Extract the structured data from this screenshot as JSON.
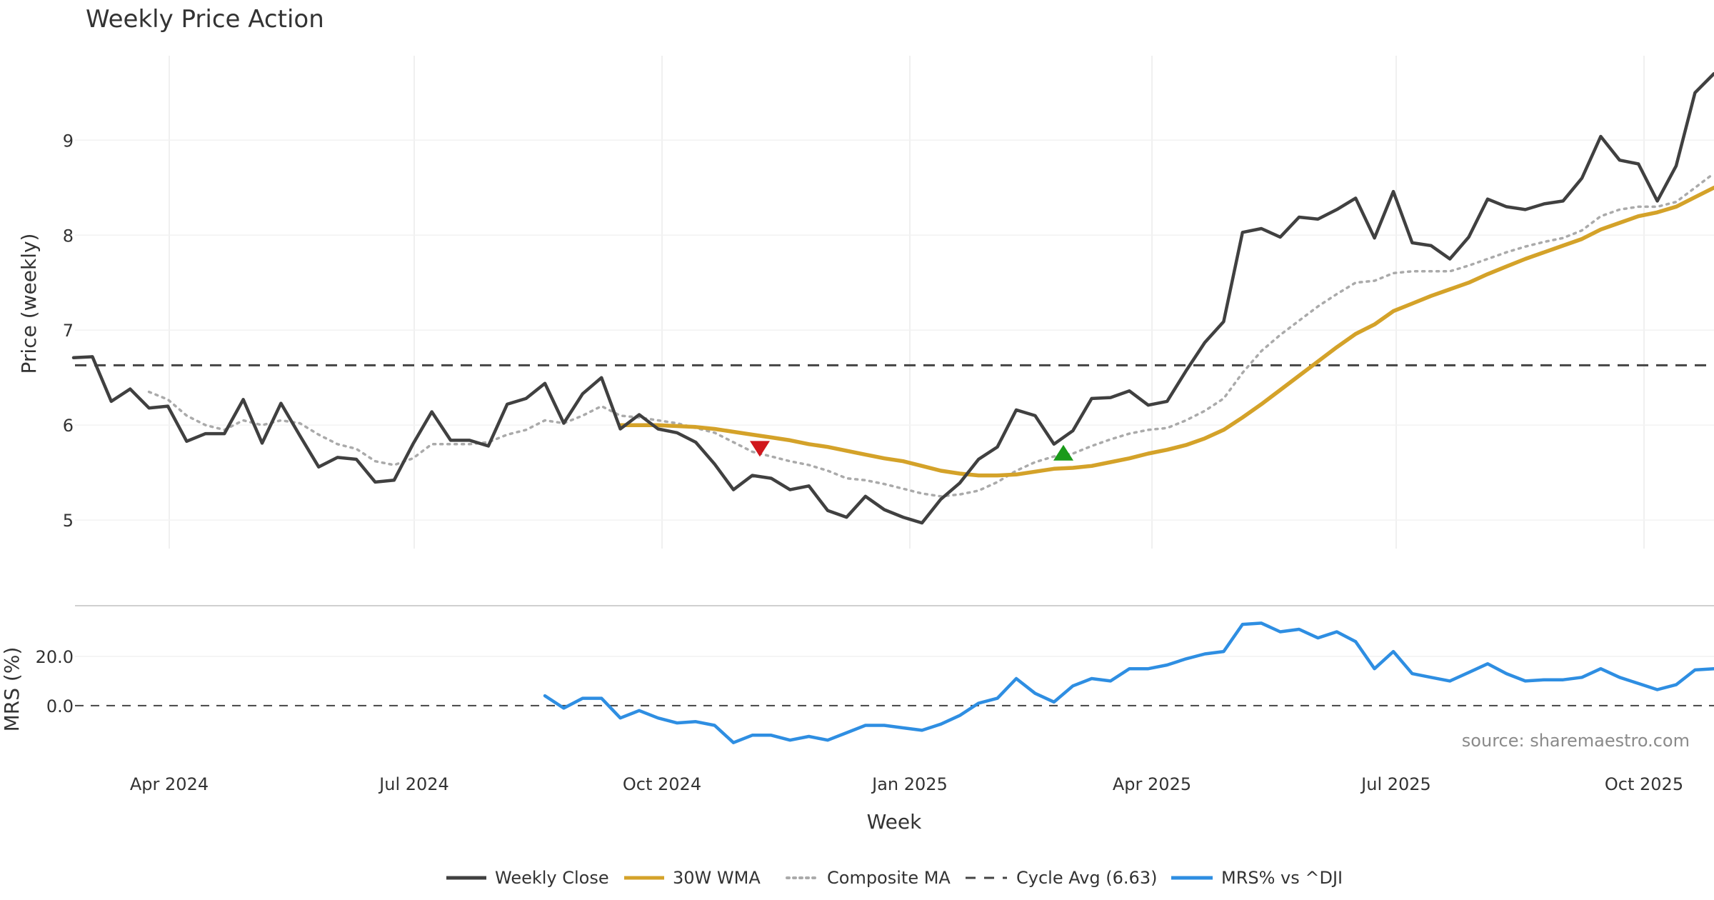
{
  "chart_data": {
    "type": "line",
    "title": "Weekly Price Action",
    "source": "source: sharemaestro.com",
    "xlabel": "Week",
    "x_ticks": [
      "Apr 2024",
      "Jul 2024",
      "Oct 2024",
      "Jan 2025",
      "Apr 2025",
      "Jul 2025",
      "Oct 2025"
    ],
    "price_panel": {
      "ylabel": "Price (weekly)",
      "ylim": [
        4.7,
        9.95
      ],
      "y_ticks": [
        "5",
        "6",
        "7",
        "8",
        "9"
      ],
      "cycle_avg": 6.63,
      "series": [
        {
          "name": "Weekly Close",
          "color": "#404040",
          "values": [
            6.71,
            6.72,
            6.25,
            6.38,
            6.18,
            6.2,
            5.83,
            5.91,
            5.91,
            6.27,
            5.81,
            6.23,
            5.89,
            5.56,
            5.66,
            5.64,
            5.4,
            5.42,
            5.8,
            6.14,
            5.84,
            5.84,
            5.78,
            6.22,
            6.28,
            6.44,
            6.02,
            6.33,
            6.5,
            5.96,
            6.11,
            5.96,
            5.92,
            5.82,
            5.59,
            5.32,
            5.47,
            5.44,
            5.32,
            5.36,
            5.1,
            5.03,
            5.25,
            5.11,
            5.03,
            4.97,
            5.22,
            5.39,
            5.64,
            5.77,
            6.16,
            6.1,
            5.8,
            5.94,
            6.28,
            6.29,
            6.36,
            6.21,
            6.25,
            6.57,
            6.87,
            7.09,
            8.03,
            8.07,
            7.98,
            8.19,
            8.17,
            8.27,
            8.39,
            7.97,
            8.46,
            7.92,
            7.89,
            7.75,
            7.98,
            8.38,
            8.3,
            8.27,
            8.33,
            8.36,
            8.6,
            9.04,
            8.79,
            8.75,
            8.36,
            8.73,
            9.5,
            9.7
          ]
        },
        {
          "name": "30W WMA",
          "color": "#d4a229",
          "values": [
            null,
            null,
            null,
            null,
            null,
            null,
            null,
            null,
            null,
            null,
            null,
            null,
            null,
            null,
            null,
            null,
            null,
            null,
            null,
            null,
            null,
            null,
            null,
            null,
            null,
            null,
            null,
            null,
            null,
            6.0,
            6.0,
            6.0,
            5.99,
            5.98,
            5.96,
            5.93,
            5.9,
            5.87,
            5.84,
            5.8,
            5.77,
            5.73,
            5.69,
            5.65,
            5.62,
            5.57,
            5.52,
            5.49,
            5.47,
            5.47,
            5.48,
            5.51,
            5.54,
            5.55,
            5.57,
            5.61,
            5.65,
            5.7,
            5.74,
            5.79,
            5.86,
            5.95,
            6.08,
            6.22,
            6.37,
            6.52,
            6.67,
            6.82,
            6.96,
            7.06,
            7.2,
            7.28,
            7.36,
            7.43,
            7.5,
            7.59,
            7.67,
            7.75,
            7.82,
            7.89,
            7.96,
            8.06,
            8.13,
            8.2,
            8.24,
            8.3,
            8.4,
            8.5
          ]
        },
        {
          "name": "Composite MA",
          "color": "#aaaaaa",
          "dashed": true,
          "values": [
            null,
            null,
            null,
            null,
            6.35,
            6.27,
            6.1,
            6.0,
            5.95,
            6.05,
            6.0,
            6.05,
            6.02,
            5.9,
            5.8,
            5.75,
            5.62,
            5.58,
            5.65,
            5.8,
            5.8,
            5.8,
            5.82,
            5.9,
            5.95,
            6.05,
            6.02,
            6.1,
            6.2,
            6.1,
            6.08,
            6.05,
            6.02,
            5.97,
            5.92,
            5.82,
            5.72,
            5.67,
            5.62,
            5.58,
            5.52,
            5.44,
            5.42,
            5.38,
            5.33,
            5.28,
            5.25,
            5.27,
            5.31,
            5.4,
            5.52,
            5.61,
            5.67,
            5.7,
            5.78,
            5.85,
            5.91,
            5.95,
            5.97,
            6.05,
            6.15,
            6.28,
            6.55,
            6.78,
            6.95,
            7.1,
            7.25,
            7.38,
            7.5,
            7.52,
            7.6,
            7.62,
            7.62,
            7.62,
            7.68,
            7.75,
            7.82,
            7.88,
            7.93,
            7.97,
            8.05,
            8.2,
            8.27,
            8.3,
            8.3,
            8.35,
            8.5,
            8.65
          ]
        }
      ],
      "markers": [
        {
          "name": "sell-signal",
          "shape": "triangle-down",
          "color": "#d0161c",
          "x_index": 36.4,
          "y": 5.75
        },
        {
          "name": "buy-signal",
          "shape": "triangle-up",
          "color": "#1a9a1a",
          "x_index": 52.5,
          "y": 5.71
        }
      ]
    },
    "mrs_panel": {
      "ylabel": "MRS (%)",
      "ylim": [
        -18,
        40
      ],
      "y_ticks": [
        "20.0",
        "0.0"
      ],
      "series": [
        {
          "name": "MRS% vs ^DJI",
          "color": "#2e8ee2",
          "values": [
            null,
            null,
            null,
            null,
            null,
            null,
            null,
            null,
            null,
            null,
            null,
            null,
            null,
            null,
            null,
            null,
            null,
            null,
            null,
            null,
            null,
            null,
            null,
            null,
            null,
            4.0,
            -1.0,
            3.0,
            3.0,
            -5.0,
            -2.0,
            -5.0,
            -7.0,
            -6.5,
            -8.0,
            -15.0,
            -12.0,
            -12.0,
            -14.0,
            -12.5,
            -14.0,
            -11.0,
            -8.0,
            -8.0,
            -9.0,
            -10.0,
            -7.5,
            -4.0,
            1.0,
            3.0,
            11.0,
            5.0,
            1.5,
            8.0,
            11.0,
            10.0,
            15.0,
            15.0,
            16.5,
            19.0,
            21.0,
            22.0,
            33.0,
            33.5,
            30.0,
            31.0,
            27.5,
            30.0,
            26.0,
            15.0,
            22.0,
            13.0,
            11.5,
            10.0,
            13.5,
            17.0,
            13.0,
            10.0,
            10.5,
            10.5,
            11.5,
            15.0,
            11.5,
            9.0,
            6.5,
            8.5,
            14.5,
            15.0
          ]
        }
      ]
    },
    "legend": {
      "placement": "bottom-center",
      "entries": [
        "Weekly Close",
        "30W WMA",
        "Composite MA",
        "Cycle Avg (6.63)",
        "MRS% vs ^DJI"
      ]
    }
  }
}
